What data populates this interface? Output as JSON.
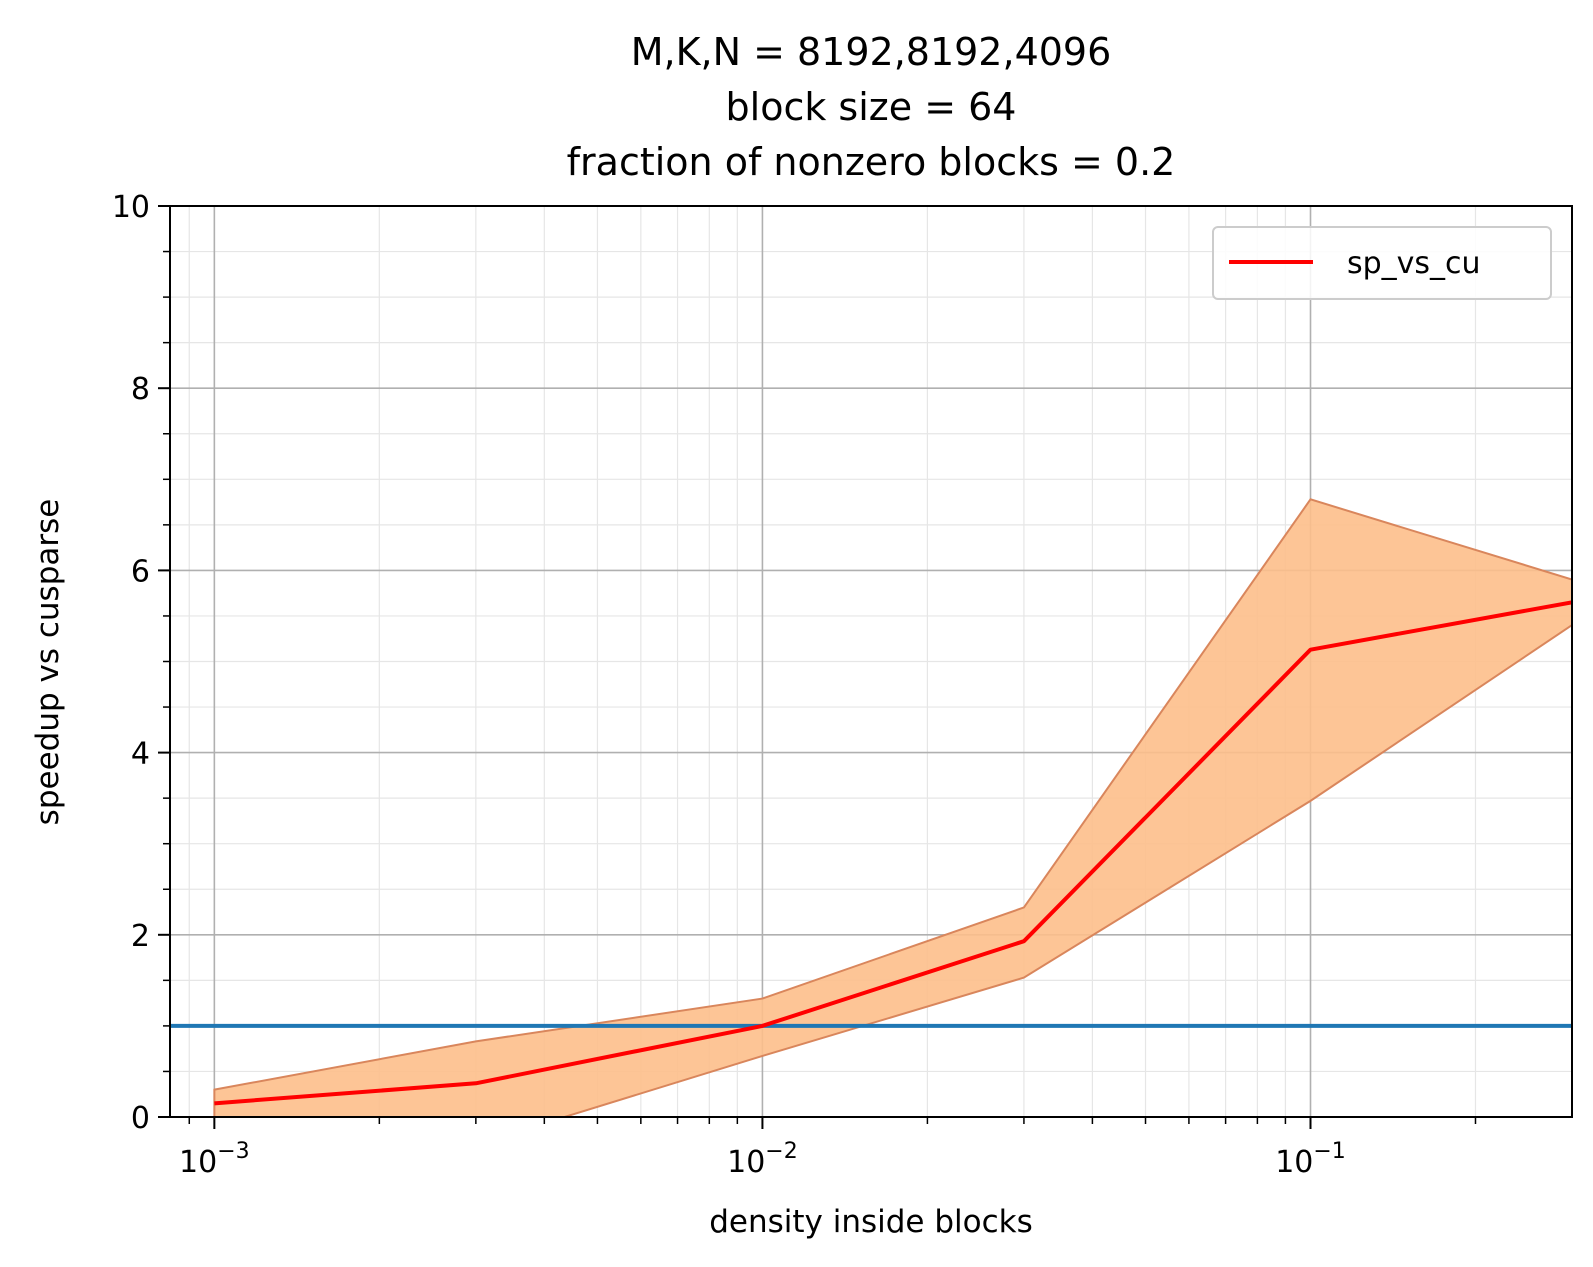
{
  "chart_data": {
    "type": "line",
    "title_lines": [
      "M,K,N = 8192,8192,4096",
      "block size = 64",
      "fraction of nonzero blocks = 0.2"
    ],
    "xlabel": "density inside blocks",
    "ylabel": "speedup vs cusparse",
    "xscale": "log",
    "xlim": [
      0.00083,
      0.3
    ],
    "ylim": [
      0,
      10
    ],
    "x_tick_base": "10",
    "x_ticks": [
      {
        "value": 0.001,
        "exponent": "−3"
      },
      {
        "value": 0.01,
        "exponent": "−2"
      },
      {
        "value": 0.1,
        "exponent": "−1"
      }
    ],
    "y_ticks": [
      0,
      2,
      4,
      6,
      8,
      10
    ],
    "grid": true,
    "legend_position": "top-right",
    "series": [
      {
        "name": "sp_vs_cu",
        "color": "#ff0000",
        "x": [
          0.001,
          0.003,
          0.01,
          0.03,
          0.1,
          0.3
        ],
        "y": [
          0.15,
          0.37,
          1.0,
          1.93,
          5.13,
          5.65
        ],
        "band_upper": [
          0.3,
          0.83,
          1.3,
          2.3,
          6.78,
          5.9
        ],
        "band_lower": [
          0.0,
          -0.3,
          0.67,
          1.53,
          3.47,
          5.4
        ],
        "band_color": "#fdbf8b"
      }
    ],
    "reference_line": {
      "y": 1.0,
      "color": "#1f77b4"
    }
  }
}
